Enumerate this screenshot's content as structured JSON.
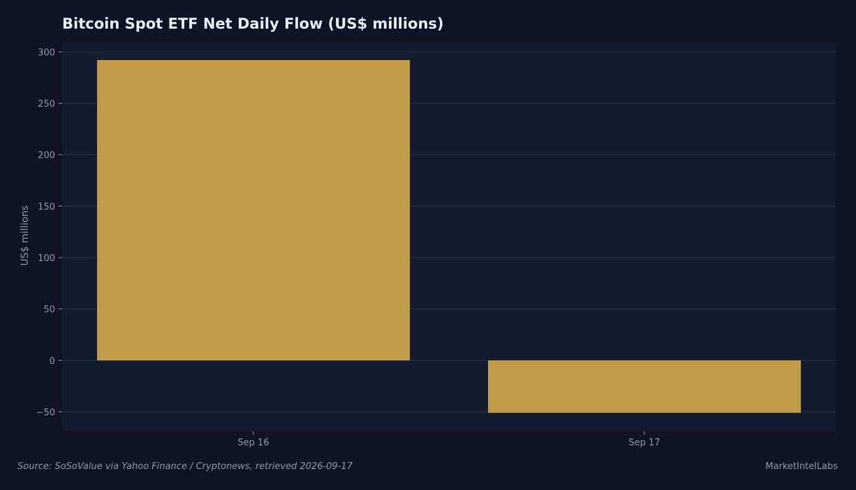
{
  "colors": {
    "background": "#0f1424",
    "plot_background": "#121c2e",
    "grid": "#263247",
    "bar": "#c19a4a",
    "text": "#e6ebf5",
    "muted_text": "#8d97aa"
  },
  "footer": {
    "source": "Source: SoSoValue via Yahoo Finance / Cryptonews, retrieved 2026-09-17",
    "brand": "MarketIntelLabs"
  },
  "chart_data": {
    "type": "bar",
    "title": "Bitcoin Spot ETF Net Daily Flow (US$ millions)",
    "xlabel": "",
    "ylabel": "US$ millions",
    "categories": [
      "Sep 16",
      "Sep 17"
    ],
    "values": [
      292,
      -51
    ],
    "ylim": [
      -69,
      309
    ],
    "yticks": [
      -50,
      0,
      50,
      100,
      150,
      200,
      250,
      300
    ],
    "ytick_labels": [
      "−50",
      "0",
      "50",
      "100",
      "150",
      "200",
      "250",
      "300"
    ],
    "grid": true,
    "legend": "none"
  }
}
